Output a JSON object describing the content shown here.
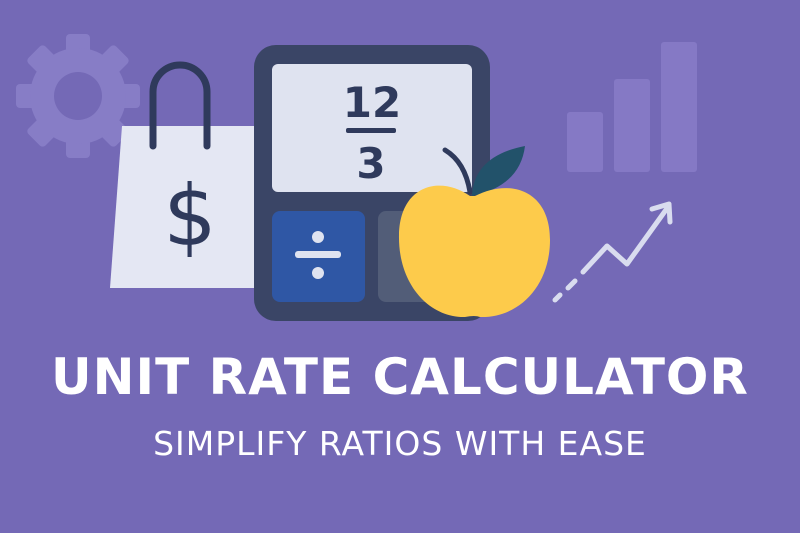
{
  "title": "UNIT RATE CALCULATOR",
  "subtitle": "SIMPLIFY RATIOS WITH EASE",
  "calculator": {
    "numerator": "12",
    "denominator": "3",
    "button_symbol": "÷"
  },
  "bag": {
    "symbol": "$"
  },
  "icons": [
    "gear-icon",
    "shopping-bag-icon",
    "calculator-icon",
    "apple-icon",
    "bar-chart-icon",
    "trend-arrow-icon"
  ],
  "colors": {
    "background": "#7469b6",
    "calculator": "#3a4566",
    "screen": "#dfe3f0",
    "divide_button": "#2f57a5",
    "apple": "#fdcb4b",
    "leaf": "#22526a"
  }
}
